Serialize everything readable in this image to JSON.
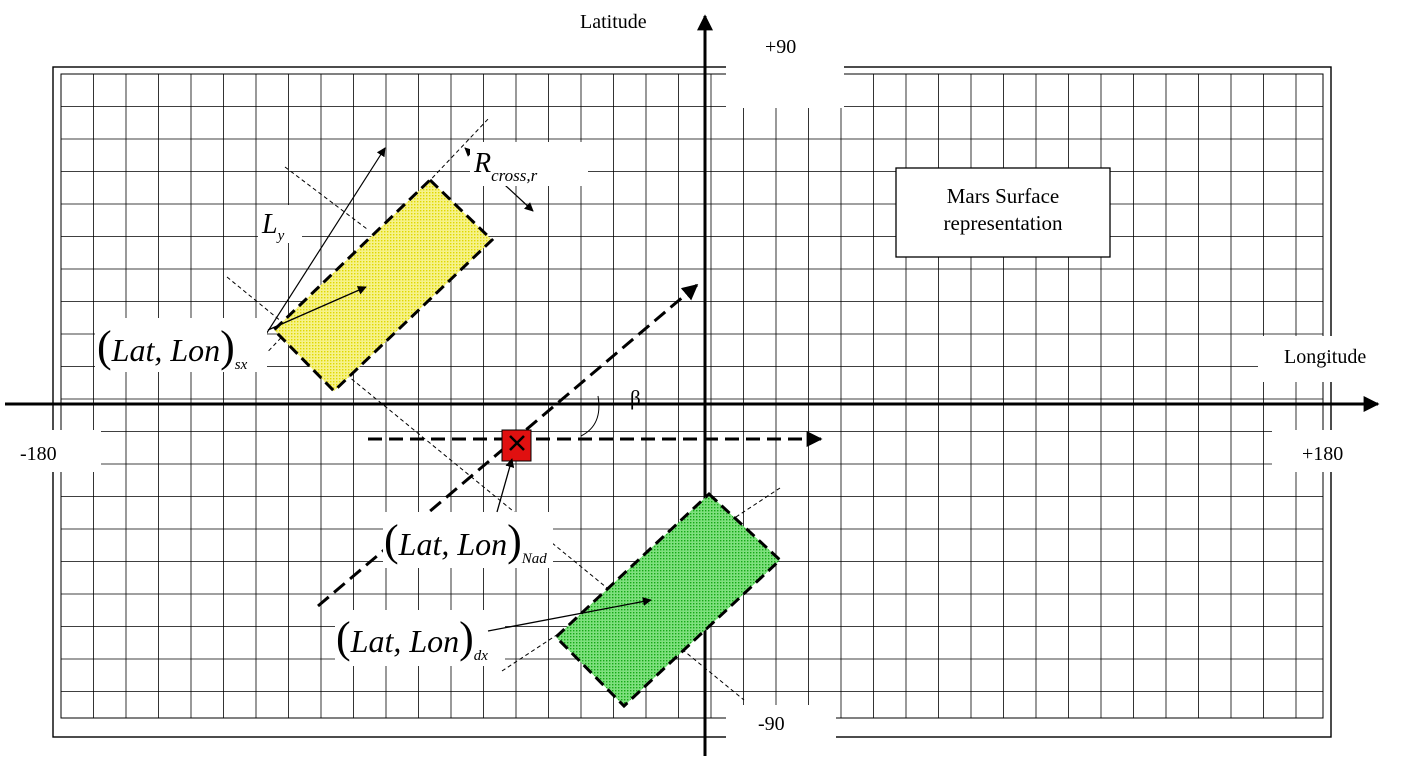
{
  "axes": {
    "x_label": "Longitude",
    "y_label": "Latitude",
    "x_min": "-180",
    "x_max": "+180",
    "y_min": "-90",
    "y_max": "+90"
  },
  "legend_box": {
    "line1": "Mars Surface",
    "line2": "representation"
  },
  "angle_label": "β",
  "ly_label": {
    "main": "L",
    "sub": "y"
  },
  "rcross_label": {
    "main": "R",
    "sub": "cross,r"
  },
  "sx_label": {
    "open": "(",
    "main": "Lat, Lon",
    "close": ")",
    "sub": "sx"
  },
  "nad_label": {
    "open": "(",
    "main": "Lat, Lon",
    "close": ")",
    "sub": "Nad"
  },
  "dx_label": {
    "open": "(",
    "main": "Lat, Lon",
    "close": ")",
    "sub": "dx"
  },
  "colors": {
    "sx_footprint": "#f2ee3a",
    "dx_footprint": "#3ec93e",
    "nadir_point": "#e01010",
    "grid": "#000000"
  }
}
